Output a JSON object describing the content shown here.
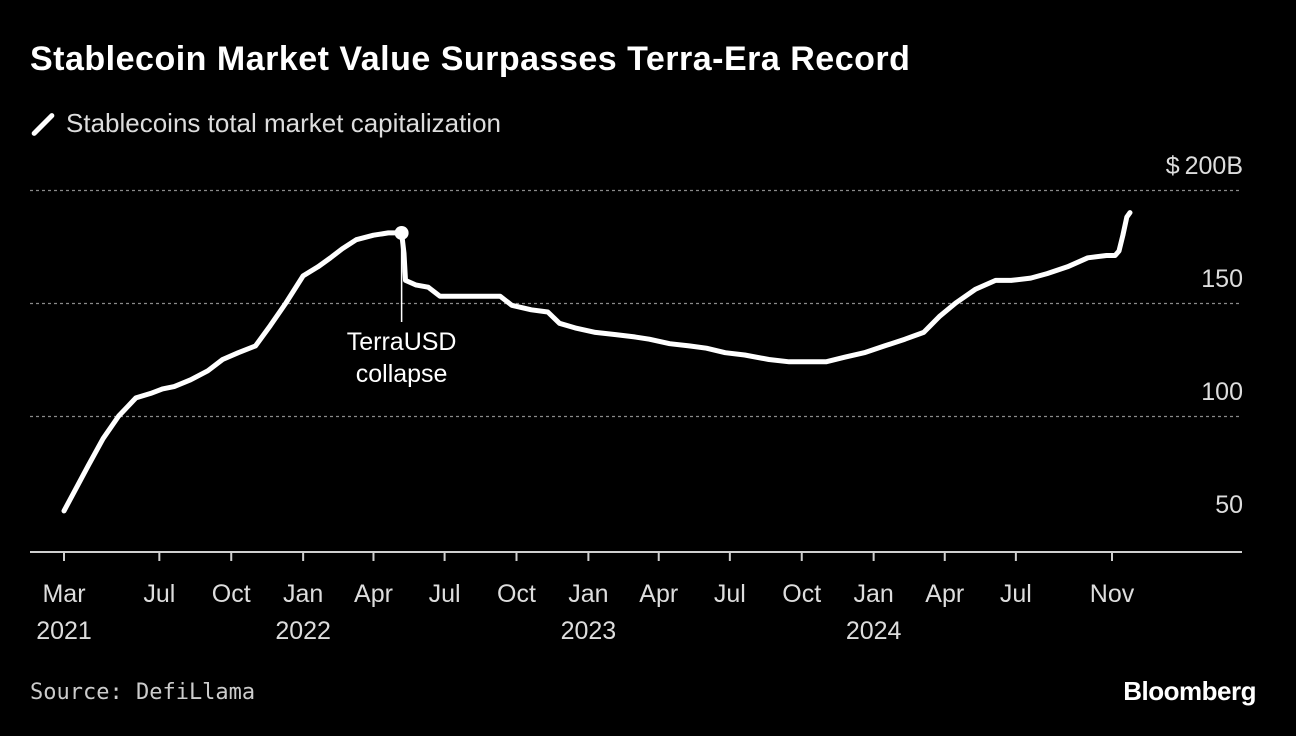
{
  "chart_data": {
    "type": "line",
    "title": "Stablecoin Market Value Surpasses Terra-Era Record",
    "y_unit_prefix": "$",
    "y_unit_suffix": "B",
    "ylim": [
      45,
      200
    ],
    "yticks": [
      50,
      100,
      150,
      200
    ],
    "grid": true,
    "legend_position": "top-left",
    "colors": {
      "background": "#000000",
      "line": "#ffffff",
      "grid": "#8a8a8a"
    },
    "x_ticks": [
      {
        "date": "2021-03-01",
        "label": "Mar",
        "year": "2021"
      },
      {
        "date": "2021-07-01",
        "label": "Jul",
        "year": ""
      },
      {
        "date": "2021-10-01",
        "label": "Oct",
        "year": ""
      },
      {
        "date": "2022-01-01",
        "label": "Jan",
        "year": "2022"
      },
      {
        "date": "2022-04-01",
        "label": "Apr",
        "year": ""
      },
      {
        "date": "2022-07-01",
        "label": "Jul",
        "year": ""
      },
      {
        "date": "2022-10-01",
        "label": "Oct",
        "year": ""
      },
      {
        "date": "2023-01-01",
        "label": "Jan",
        "year": "2023"
      },
      {
        "date": "2023-04-01",
        "label": "Apr",
        "year": ""
      },
      {
        "date": "2023-07-01",
        "label": "Jul",
        "year": ""
      },
      {
        "date": "2023-10-01",
        "label": "Oct",
        "year": ""
      },
      {
        "date": "2024-01-01",
        "label": "Jan",
        "year": "2024"
      },
      {
        "date": "2024-04-01",
        "label": "Apr",
        "year": ""
      },
      {
        "date": "2024-07-01",
        "label": "Jul",
        "year": ""
      },
      {
        "date": "2024-11-01",
        "label": "Nov",
        "year": ""
      }
    ],
    "series": [
      {
        "name": "Stablecoins total market capitalization",
        "points": [
          [
            "2021-03-01",
            58
          ],
          [
            "2021-03-15",
            67
          ],
          [
            "2021-04-01",
            78
          ],
          [
            "2021-04-20",
            90
          ],
          [
            "2021-05-10",
            100
          ],
          [
            "2021-06-01",
            108
          ],
          [
            "2021-06-20",
            110
          ],
          [
            "2021-07-05",
            112
          ],
          [
            "2021-07-20",
            113
          ],
          [
            "2021-08-10",
            116
          ],
          [
            "2021-09-01",
            120
          ],
          [
            "2021-09-20",
            125
          ],
          [
            "2021-10-10",
            128
          ],
          [
            "2021-11-01",
            131
          ],
          [
            "2021-11-20",
            140
          ],
          [
            "2021-12-10",
            150
          ],
          [
            "2022-01-01",
            162
          ],
          [
            "2022-01-20",
            166
          ],
          [
            "2022-02-05",
            170
          ],
          [
            "2022-02-20",
            174
          ],
          [
            "2022-03-10",
            178
          ],
          [
            "2022-04-01",
            180
          ],
          [
            "2022-04-20",
            181
          ],
          [
            "2022-05-07",
            181
          ],
          [
            "2022-05-10",
            172
          ],
          [
            "2022-05-12",
            160
          ],
          [
            "2022-05-25",
            158
          ],
          [
            "2022-06-10",
            157
          ],
          [
            "2022-06-25",
            153
          ],
          [
            "2022-07-20",
            153
          ],
          [
            "2022-08-20",
            153
          ],
          [
            "2022-09-10",
            153
          ],
          [
            "2022-09-25",
            149
          ],
          [
            "2022-10-20",
            147
          ],
          [
            "2022-11-10",
            146
          ],
          [
            "2022-11-25",
            141
          ],
          [
            "2022-12-15",
            139
          ],
          [
            "2023-01-10",
            137
          ],
          [
            "2023-02-05",
            136
          ],
          [
            "2023-03-01",
            135
          ],
          [
            "2023-03-20",
            134
          ],
          [
            "2023-04-15",
            132
          ],
          [
            "2023-05-10",
            131
          ],
          [
            "2023-06-01",
            130
          ],
          [
            "2023-06-25",
            128
          ],
          [
            "2023-07-20",
            127
          ],
          [
            "2023-08-20",
            125
          ],
          [
            "2023-09-15",
            124
          ],
          [
            "2023-10-10",
            124
          ],
          [
            "2023-11-01",
            124
          ],
          [
            "2023-11-25",
            126
          ],
          [
            "2023-12-20",
            128
          ],
          [
            "2024-01-15",
            131
          ],
          [
            "2024-02-10",
            134
          ],
          [
            "2024-03-05",
            137
          ],
          [
            "2024-03-25",
            144
          ],
          [
            "2024-04-15",
            150
          ],
          [
            "2024-05-10",
            156
          ],
          [
            "2024-06-05",
            160
          ],
          [
            "2024-06-25",
            160
          ],
          [
            "2024-07-20",
            161
          ],
          [
            "2024-08-10",
            163
          ],
          [
            "2024-09-05",
            166
          ],
          [
            "2024-10-01",
            170
          ],
          [
            "2024-10-25",
            171
          ],
          [
            "2024-11-05",
            171
          ],
          [
            "2024-11-10",
            173
          ],
          [
            "2024-11-15",
            180
          ],
          [
            "2024-11-20",
            188
          ],
          [
            "2024-11-24",
            190
          ]
        ]
      }
    ],
    "annotations": [
      {
        "date": "2022-05-07",
        "value": 181,
        "text_line1": "TerraUSD",
        "text_line2": "collapse"
      }
    ]
  },
  "source": "Source: DefiLlama",
  "brand": "Bloomberg"
}
